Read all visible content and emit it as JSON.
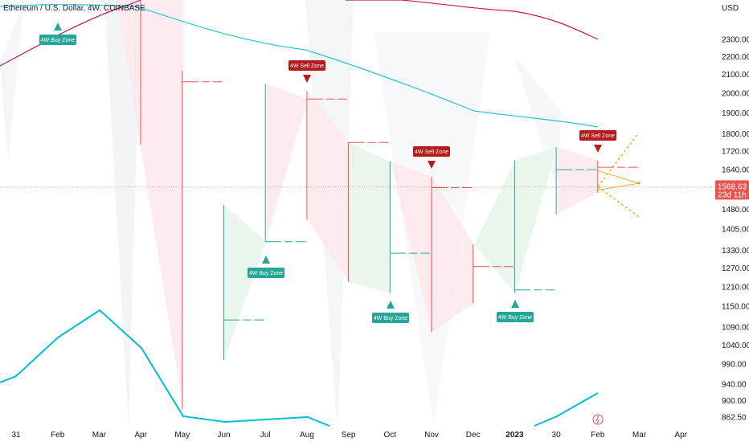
{
  "title": "Ethereum / U.S. Dollar, 4W, COINBASE",
  "currency_label": "USD",
  "colors": {
    "bull": "#26a69a",
    "bear": "#ef5350",
    "buy_zone": "#26a69a",
    "sell_zone": "#b71c1c",
    "ma_slow": "#c2185b",
    "ma_mid": "#26c6da",
    "oscillator": "#00bcd4",
    "price_tag": "#ef5350",
    "projection": "#ff9800",
    "bull_fill": "#e8f5e9",
    "bear_fill": "#fde8ec",
    "ghost": "#eceff1"
  },
  "chart_data": {
    "type": "candlestick",
    "symbol": "Ethereum / U.S. Dollar",
    "interval": "4W",
    "exchange": "COINBASE",
    "x_ticks": [
      "31",
      "Feb",
      "Mar",
      "Apr",
      "May",
      "Jun",
      "Jul",
      "Aug",
      "Sep",
      "Oct",
      "Nov",
      "Dec",
      "2023",
      "30",
      "Feb",
      "Mar",
      "Apr"
    ],
    "x_tick_bold_index": 12,
    "y_ticks": [
      862.5,
      900,
      940,
      990,
      1040,
      1090,
      1150,
      1210,
      1270,
      1330,
      1405,
      1480,
      1560,
      1640,
      1720,
      1800,
      1900,
      2000,
      2100,
      2200,
      2300
    ],
    "y_tick_labels": [
      "862.50",
      "900.00",
      "940.00",
      "990.00",
      "1040.00",
      "1090.00",
      "1150.00",
      "1210.00",
      "1270.00",
      "1330.00",
      "1405.00",
      "1480.00",
      "1560.00",
      "1640.00",
      "1720.00",
      "1800.00",
      "1900.00",
      "2000.00",
      "2100.00",
      "2200.00",
      "2300.00"
    ],
    "y_scale": "log",
    "candles": [
      {
        "period": "Apr",
        "open": 2900,
        "high": 3600,
        "low": 1750,
        "close": 2060
      },
      {
        "period": "May",
        "open": 2060,
        "high": 2120,
        "low": 880,
        "close": 1110
      },
      {
        "period": "Jun",
        "open": 1110,
        "high": 1495,
        "low": 1000,
        "close": 1360
      },
      {
        "period": "Jul",
        "open": 1360,
        "high": 2050,
        "low": 1360,
        "close": 1970
      },
      {
        "period": "Aug",
        "open": 1970,
        "high": 2010,
        "low": 1440,
        "close": 1760
      },
      {
        "period": "Sep",
        "open": 1760,
        "high": 1760,
        "low": 1225,
        "close": 1320
      },
      {
        "period": "Oct",
        "open": 1320,
        "high": 1675,
        "low": 1190,
        "close": 1565
      },
      {
        "period": "Nov",
        "open": 1565,
        "high": 1610,
        "low": 1075,
        "close": 1275
      },
      {
        "period": "Dec",
        "open": 1275,
        "high": 1350,
        "low": 1160,
        "close": 1200
      },
      {
        "period": "2023",
        "open": 1200,
        "high": 1680,
        "low": 1190,
        "close": 1640
      },
      {
        "period": "30",
        "open": 1640,
        "high": 1740,
        "low": 1460,
        "close": 1650
      },
      {
        "period": "Feb",
        "open": 1650,
        "high": 1680,
        "low": 1545,
        "close": 1568.63
      }
    ],
    "zones": [
      {
        "label": "4W Buy Zone",
        "kind": "buy",
        "period": "Feb"
      },
      {
        "label": "4W Sell Zone",
        "kind": "sell",
        "period": "Aug"
      },
      {
        "label": "4W Buy Zone",
        "kind": "buy",
        "period": "Jul"
      },
      {
        "label": "4W Sell Zone",
        "kind": "sell",
        "period": "Nov"
      },
      {
        "label": "4W Buy Zone",
        "kind": "buy",
        "period": "Oct"
      },
      {
        "label": "4W Buy Zone",
        "kind": "buy",
        "period": "2023"
      },
      {
        "label": "4W Sell Zone",
        "kind": "sell",
        "period": "Feb"
      }
    ],
    "last_price": "1568.63",
    "countdown": "23d 11h"
  }
}
